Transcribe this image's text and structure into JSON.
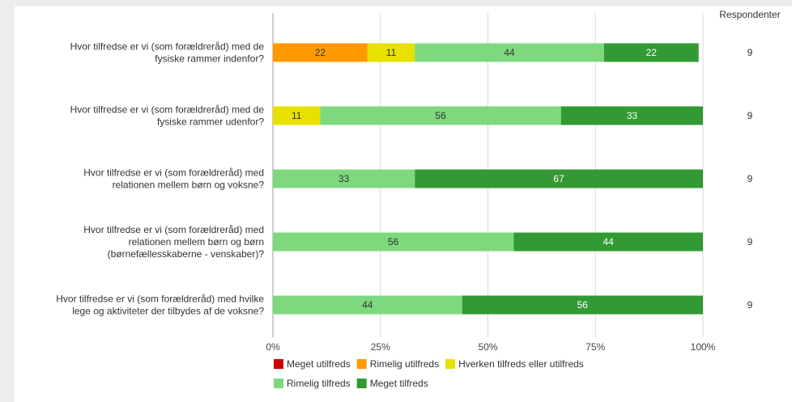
{
  "chart_data": {
    "type": "bar",
    "orientation": "horizontal",
    "stacked": true,
    "categories": [
      [
        "Hvor tilfredse er vi (som forældreråd) med de",
        "fysiske rammer indenfor?"
      ],
      [
        "Hvor tilfredse er vi (som forældreråd) med de",
        "fysiske rammer udenfor?"
      ],
      [
        "Hvor tilfredse er vi (som forældreråd) med",
        "relationen mellem børn og voksne?"
      ],
      [
        "Hvor tilfredse er vi (som forældreråd) med",
        "relationen mellem børn og børn",
        "(børnefællesskaberne - venskaber)?"
      ],
      [
        "Hvor tilfredse er vi (som forældreråd) med hvilke",
        "lege og aktiviteter der tilbydes af de voksne?"
      ]
    ],
    "series": [
      {
        "name": "Meget utilfreds",
        "color": "#cc0000",
        "values": [
          0,
          0,
          0,
          0,
          0
        ]
      },
      {
        "name": "Rimelig utilfreds",
        "color": "#ff9900",
        "values": [
          22,
          0,
          0,
          0,
          0
        ]
      },
      {
        "name": "Hverken tilfreds eller utilfreds",
        "color": "#e8e000",
        "values": [
          11,
          11,
          0,
          0,
          0
        ]
      },
      {
        "name": "Rimelig tilfreds",
        "color": "#7ed97e",
        "values": [
          44,
          56,
          33,
          56,
          44
        ]
      },
      {
        "name": "Meget tilfreds",
        "color": "#339933",
        "values": [
          22,
          33,
          67,
          44,
          56
        ]
      }
    ],
    "xlim": [
      0,
      100
    ],
    "x_ticks": [
      "0%",
      "25%",
      "50%",
      "75%",
      "100%"
    ],
    "grid": true,
    "legend_position": "bottom",
    "respondents_header": "Respondenter",
    "respondents": [
      9,
      9,
      9,
      9,
      9
    ]
  }
}
